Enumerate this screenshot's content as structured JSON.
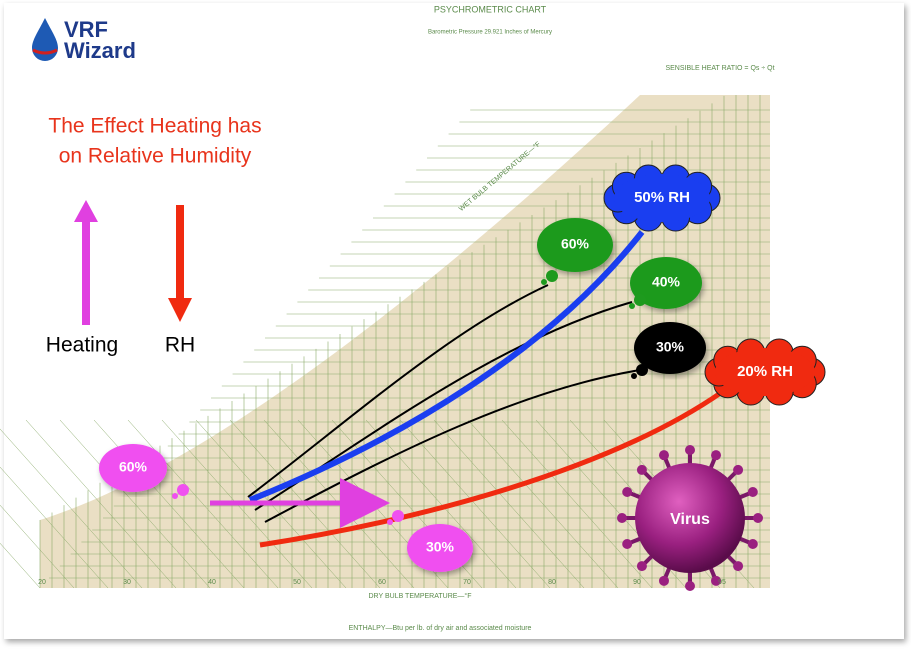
{
  "logo": {
    "line1": "VRF",
    "line2": "Wizard"
  },
  "title": {
    "line1": "The Effect Heating has",
    "line2": "on Relative Humidity"
  },
  "legend": {
    "heating": "Heating",
    "rh": "RH"
  },
  "chart": {
    "header": "PSYCHROMETRIC CHART",
    "subheader": "Barometric Pressure 29.921 Inches of Mercury",
    "x_axis": "DRY BULB TEMPERATURE—°F",
    "enthalpy": "ENTHALPY—Btu per lb. of dry air and associated moisture",
    "shr": "SENSIBLE HEAT RATIO = Qs ÷ Qt",
    "wet_bulb": "WET BULB TEMPERATURE—°F",
    "x_ticks": [
      "20",
      "30",
      "40",
      "50",
      "60",
      "70",
      "80",
      "90",
      "95"
    ]
  },
  "bubbles": {
    "green_60": "60%",
    "green_40": "40%",
    "black_30": "30%",
    "blue_50": "50% RH",
    "red_20": "20% RH",
    "pink_60": "60%",
    "pink_30": "30%"
  },
  "virus": "Virus"
}
